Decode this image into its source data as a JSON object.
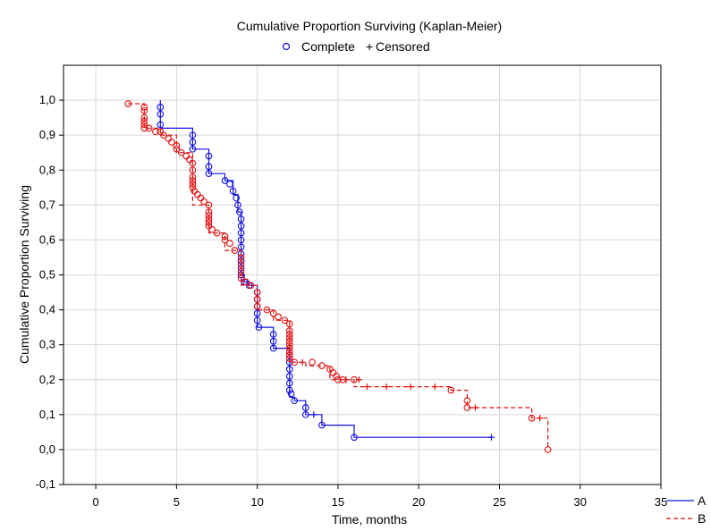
{
  "chart_data": {
    "type": "line",
    "title": "Cumulative Proportion Surviving (Kaplan-Meier)",
    "marker_legend": {
      "complete_symbol": "o",
      "complete_label": "Complete",
      "censored_symbol": "+",
      "censored_label": "Censored"
    },
    "xlabel": "Time, months",
    "ylabel": "Cumulative Proportion Surviving",
    "xlim": [
      -2,
      35
    ],
    "ylim": [
      -0.1,
      1.1
    ],
    "x_ticks": [
      0,
      5,
      10,
      15,
      20,
      25,
      30,
      35
    ],
    "x_tick_labels": [
      "0",
      "5",
      "10",
      "15",
      "20",
      "25",
      "30",
      "35"
    ],
    "y_ticks": [
      -0.1,
      0,
      0.1,
      0.2,
      0.3,
      0.4,
      0.5,
      0.6,
      0.7,
      0.8,
      0.9,
      1.0
    ],
    "y_tick_labels": [
      "-0,1",
      "0,0",
      "0,1",
      "0,2",
      "0,3",
      "0,4",
      "0,5",
      "0,6",
      "0,7",
      "0,8",
      "0,9",
      "1,0"
    ],
    "grid": true,
    "legend_position": "bottom-right, outside plot",
    "series": [
      {
        "name": "A",
        "color": "#1010e0",
        "dash": "solid",
        "steps": [
          [
            4,
            1.0
          ],
          [
            4,
            0.92
          ],
          [
            6,
            0.92
          ],
          [
            6,
            0.86
          ],
          [
            7,
            0.86
          ],
          [
            7,
            0.79
          ],
          [
            8,
            0.79
          ],
          [
            8,
            0.77
          ],
          [
            8.5,
            0.77
          ],
          [
            8.5,
            0.73
          ],
          [
            8.8,
            0.73
          ],
          [
            8.8,
            0.68
          ],
          [
            9,
            0.68
          ],
          [
            9,
            0.5
          ],
          [
            9.2,
            0.5
          ],
          [
            9.2,
            0.48
          ],
          [
            9.5,
            0.48
          ],
          [
            9.5,
            0.47
          ],
          [
            10,
            0.47
          ],
          [
            10,
            0.35
          ],
          [
            11,
            0.35
          ],
          [
            11,
            0.29
          ],
          [
            12,
            0.29
          ],
          [
            12,
            0.15
          ],
          [
            12.3,
            0.15
          ],
          [
            12.3,
            0.14
          ],
          [
            13,
            0.14
          ],
          [
            13,
            0.1
          ],
          [
            13.5,
            0.1
          ],
          [
            14,
            0.1
          ],
          [
            14,
            0.07
          ],
          [
            16,
            0.07
          ],
          [
            16,
            0.035
          ],
          [
            24.5,
            0.035
          ]
        ],
        "complete_points": [
          [
            4,
            0.98
          ],
          [
            4,
            0.96
          ],
          [
            4,
            0.93
          ],
          [
            6,
            0.9
          ],
          [
            6,
            0.88
          ],
          [
            6,
            0.86
          ],
          [
            7,
            0.84
          ],
          [
            7,
            0.81
          ],
          [
            7,
            0.79
          ],
          [
            8,
            0.77
          ],
          [
            8.3,
            0.76
          ],
          [
            8.5,
            0.74
          ],
          [
            8.7,
            0.72
          ],
          [
            8.8,
            0.7
          ],
          [
            8.9,
            0.68
          ],
          [
            9,
            0.66
          ],
          [
            9,
            0.64
          ],
          [
            9,
            0.62
          ],
          [
            9,
            0.6
          ],
          [
            9,
            0.58
          ],
          [
            9,
            0.56
          ],
          [
            9,
            0.54
          ],
          [
            9,
            0.52
          ],
          [
            9,
            0.5
          ],
          [
            9.2,
            0.48
          ],
          [
            9.5,
            0.47
          ],
          [
            10,
            0.45
          ],
          [
            10,
            0.43
          ],
          [
            10,
            0.41
          ],
          [
            10,
            0.39
          ],
          [
            10,
            0.37
          ],
          [
            10.1,
            0.35
          ],
          [
            11,
            0.33
          ],
          [
            11,
            0.31
          ],
          [
            11,
            0.29
          ],
          [
            12,
            0.27
          ],
          [
            12,
            0.25
          ],
          [
            12,
            0.23
          ],
          [
            12,
            0.21
          ],
          [
            12,
            0.19
          ],
          [
            12,
            0.17
          ],
          [
            12.1,
            0.16
          ],
          [
            12.3,
            0.14
          ],
          [
            13,
            0.12
          ],
          [
            13,
            0.1
          ],
          [
            14,
            0.07
          ],
          [
            16,
            0.035
          ]
        ],
        "censored_points": [
          [
            13.5,
            0.1
          ],
          [
            24.5,
            0.035
          ]
        ],
        "legend_label": "A"
      },
      {
        "name": "B",
        "color": "#e01010",
        "dash": "dashed",
        "steps": [
          [
            2,
            0.99
          ],
          [
            3,
            0.99
          ],
          [
            3,
            0.92
          ],
          [
            4,
            0.92
          ],
          [
            4,
            0.9
          ],
          [
            5,
            0.9
          ],
          [
            5,
            0.85
          ],
          [
            6,
            0.85
          ],
          [
            6,
            0.7
          ],
          [
            7,
            0.7
          ],
          [
            7,
            0.62
          ],
          [
            8,
            0.62
          ],
          [
            8,
            0.57
          ],
          [
            9,
            0.57
          ],
          [
            9,
            0.47
          ],
          [
            10,
            0.47
          ],
          [
            10,
            0.4
          ],
          [
            11,
            0.4
          ],
          [
            11,
            0.37
          ],
          [
            12,
            0.37
          ],
          [
            12,
            0.25
          ],
          [
            13,
            0.25
          ],
          [
            13,
            0.24
          ],
          [
            14.5,
            0.24
          ],
          [
            14.5,
            0.2
          ],
          [
            16,
            0.2
          ],
          [
            16,
            0.18
          ],
          [
            22,
            0.18
          ],
          [
            22,
            0.17
          ],
          [
            23,
            0.17
          ],
          [
            23,
            0.12
          ],
          [
            27,
            0.12
          ],
          [
            27,
            0.09
          ],
          [
            28,
            0.09
          ],
          [
            28,
            0.0
          ]
        ],
        "complete_points": [
          [
            2,
            0.99
          ],
          [
            3,
            0.98
          ],
          [
            3,
            0.97
          ],
          [
            3,
            0.95
          ],
          [
            3,
            0.94
          ],
          [
            3,
            0.93
          ],
          [
            3,
            0.92
          ],
          [
            3.3,
            0.92
          ],
          [
            3.7,
            0.91
          ],
          [
            4,
            0.91
          ],
          [
            4.2,
            0.9
          ],
          [
            4.5,
            0.89
          ],
          [
            4.7,
            0.88
          ],
          [
            5,
            0.87
          ],
          [
            5,
            0.86
          ],
          [
            5.3,
            0.85
          ],
          [
            5.6,
            0.84
          ],
          [
            5.8,
            0.83
          ],
          [
            6,
            0.82
          ],
          [
            6,
            0.8
          ],
          [
            6,
            0.78
          ],
          [
            6,
            0.77
          ],
          [
            6,
            0.76
          ],
          [
            6,
            0.75
          ],
          [
            6.1,
            0.74
          ],
          [
            6.3,
            0.73
          ],
          [
            6.5,
            0.72
          ],
          [
            6.7,
            0.71
          ],
          [
            7,
            0.7
          ],
          [
            7,
            0.68
          ],
          [
            7,
            0.67
          ],
          [
            7,
            0.66
          ],
          [
            7,
            0.65
          ],
          [
            7,
            0.64
          ],
          [
            7.2,
            0.63
          ],
          [
            7.5,
            0.62
          ],
          [
            8,
            0.61
          ],
          [
            8,
            0.6
          ],
          [
            8.3,
            0.59
          ],
          [
            8.6,
            0.57
          ],
          [
            9,
            0.55
          ],
          [
            9,
            0.53
          ],
          [
            9,
            0.51
          ],
          [
            9,
            0.49
          ],
          [
            9.3,
            0.48
          ],
          [
            9.6,
            0.47
          ],
          [
            10,
            0.45
          ],
          [
            10,
            0.43
          ],
          [
            10,
            0.41
          ],
          [
            10.6,
            0.4
          ],
          [
            11,
            0.39
          ],
          [
            11.3,
            0.38
          ],
          [
            11.7,
            0.37
          ],
          [
            12,
            0.36
          ],
          [
            12,
            0.34
          ],
          [
            12,
            0.33
          ],
          [
            12,
            0.32
          ],
          [
            12,
            0.31
          ],
          [
            12,
            0.3
          ],
          [
            12,
            0.29
          ],
          [
            12,
            0.28
          ],
          [
            12,
            0.27
          ],
          [
            12,
            0.26
          ],
          [
            12.3,
            0.25
          ],
          [
            13.4,
            0.25
          ],
          [
            14,
            0.24
          ],
          [
            14.5,
            0.23
          ],
          [
            14.7,
            0.22
          ],
          [
            14.9,
            0.21
          ],
          [
            15,
            0.2
          ],
          [
            15.3,
            0.2
          ],
          [
            16,
            0.2
          ],
          [
            22,
            0.17
          ],
          [
            23,
            0.14
          ],
          [
            23,
            0.12
          ],
          [
            27,
            0.09
          ],
          [
            28,
            0.0
          ]
        ],
        "censored_points": [
          [
            12.8,
            0.25
          ],
          [
            15.5,
            0.2
          ],
          [
            16.3,
            0.2
          ],
          [
            16.8,
            0.18
          ],
          [
            18,
            0.18
          ],
          [
            19.5,
            0.18
          ],
          [
            21,
            0.18
          ],
          [
            23.5,
            0.12
          ],
          [
            27.5,
            0.09
          ]
        ],
        "legend_label": "B"
      }
    ]
  }
}
